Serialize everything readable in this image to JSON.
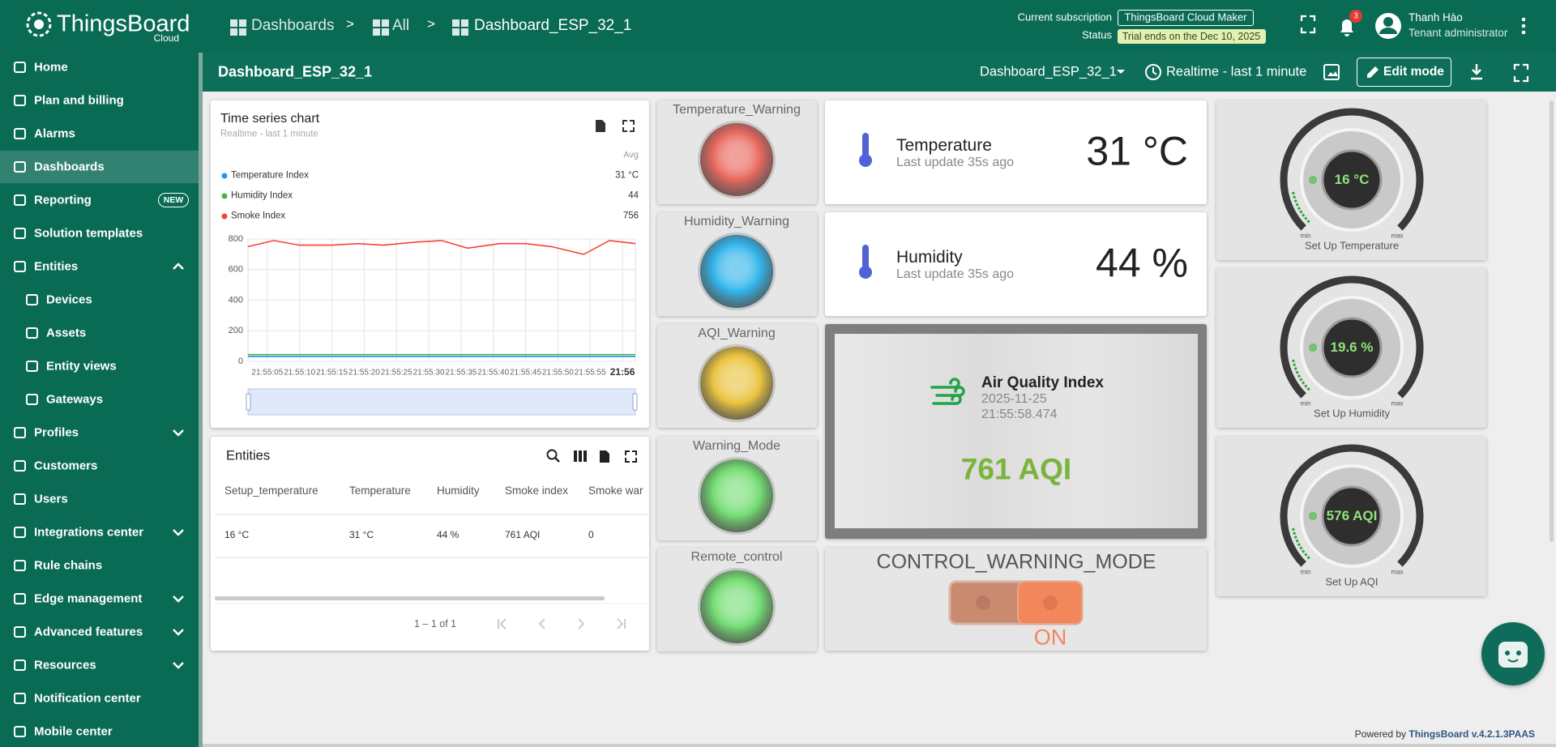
{
  "header": {
    "logo": "ThingsBoard",
    "logo_sub": "Cloud",
    "breadcrumbs": [
      "Dashboards",
      "All",
      "Dashboard_ESP_32_1"
    ],
    "separator": ">",
    "subscription_label": "Current subscription",
    "subscription": "ThingsBoard Cloud Maker",
    "status_label": "Status",
    "status": "Trial ends on the Dec 10, 2025",
    "notifications": "3",
    "user_name": "Thanh Hào",
    "user_role": "Tenant administrator"
  },
  "sidebar": {
    "items": [
      {
        "label": "Home"
      },
      {
        "label": "Plan and billing"
      },
      {
        "label": "Alarms"
      },
      {
        "label": "Dashboards",
        "active": true
      },
      {
        "label": "Reporting",
        "badge": "NEW"
      },
      {
        "label": "Solution templates"
      },
      {
        "label": "Entities",
        "expanded": true,
        "children": [
          {
            "label": "Devices"
          },
          {
            "label": "Assets"
          },
          {
            "label": "Entity views"
          },
          {
            "label": "Gateways"
          }
        ]
      },
      {
        "label": "Profiles",
        "expandable": true
      },
      {
        "label": "Customers"
      },
      {
        "label": "Users"
      },
      {
        "label": "Integrations center",
        "expandable": true
      },
      {
        "label": "Rule chains"
      },
      {
        "label": "Edge management",
        "expandable": true
      },
      {
        "label": "Advanced features",
        "expandable": true
      },
      {
        "label": "Resources",
        "expandable": true
      },
      {
        "label": "Notification center"
      },
      {
        "label": "Mobile center"
      }
    ]
  },
  "toolbar": {
    "title": "Dashboard_ESP_32_1",
    "dashboard_select": "Dashboard_ESP_32_1",
    "timewindow": "Realtime - last 1 minute",
    "edit_button": "Edit mode"
  },
  "time_series_chart": {
    "type": "line",
    "title": "Time series chart",
    "subtitle": "Realtime - last 1 minute",
    "legend_header": "Avg",
    "x": [
      "21:55:02",
      "21:55:06",
      "21:55:10",
      "21:55:15",
      "21:55:19",
      "21:55:23",
      "21:55:28",
      "21:55:32",
      "21:55:36",
      "21:55:41",
      "21:55:45",
      "21:55:49",
      "21:55:54",
      "21:55:58",
      "21:56:02"
    ],
    "series": [
      {
        "name": "Temperature Index",
        "color": "#2196f3",
        "avg": "31 °C",
        "values": [
          31,
          31,
          31,
          31,
          31,
          31,
          31,
          31,
          31,
          31,
          31,
          31,
          31,
          31,
          31
        ]
      },
      {
        "name": "Humidity Index",
        "color": "#4caf50",
        "avg": "44",
        "values": [
          44,
          44,
          44,
          44,
          44,
          44,
          44,
          44,
          44,
          44,
          44,
          44,
          44,
          44,
          44
        ]
      },
      {
        "name": "Smoke Index",
        "color": "#f44336",
        "avg": "756",
        "values": [
          750,
          790,
          760,
          760,
          770,
          760,
          780,
          790,
          740,
          770,
          770,
          750,
          700,
          790,
          770
        ]
      }
    ],
    "xlim": [
      "21:55:02",
      "21:56:02"
    ],
    "xticks": [
      "21:55:05",
      "21:55:10",
      "21:55:15",
      "21:55:20",
      "21:55:25",
      "21:55:30",
      "21:55:35",
      "21:55:40",
      "21:55:45",
      "21:55:50",
      "21:55:55",
      "21:56"
    ],
    "ylim": [
      0,
      800
    ],
    "yticks": [
      0,
      200,
      400,
      600,
      800
    ],
    "grid": true
  },
  "entities_table": {
    "title": "Entities",
    "columns": [
      "Setup_temperature",
      "Temperature",
      "Humidity",
      "Smoke index",
      "Smoke war"
    ],
    "rows": [
      [
        "16 °C",
        "31 °C",
        "44 %",
        "761 AQI",
        "0"
      ]
    ],
    "pagination": "1 – 1 of 1"
  },
  "leds": [
    {
      "label": "Temperature_Warning",
      "color": "#e8675c"
    },
    {
      "label": "Humidity_Warning",
      "color": "#30b4ea"
    },
    {
      "label": "AQI_Warning",
      "color": "#e9c23c"
    },
    {
      "label": "Warning_Mode",
      "color": "#72dc72"
    },
    {
      "label": "Remote_control",
      "color": "#72dc72"
    }
  ],
  "value_cards": [
    {
      "label": "Temperature",
      "subtitle": "Last update 35s ago",
      "value": "31 °C"
    },
    {
      "label": "Humidity",
      "subtitle": "Last update 35s ago",
      "value": "44 %"
    }
  ],
  "aqi_card": {
    "title": "Air Quality Index",
    "date": "2025-11-25",
    "time": "21:55:58.474",
    "value": "761 AQI"
  },
  "control": {
    "title": "CONTROL_WARNING_MODE",
    "state": "ON"
  },
  "gauges": [
    {
      "value": "16 °C",
      "title": "Set Up Temperature",
      "min": "min",
      "max": "max"
    },
    {
      "value": "19.6 %",
      "title": "Set Up Humidity",
      "min": "min",
      "max": "max"
    },
    {
      "value": "576 AQI",
      "title": "Set Up AQI",
      "min": "min",
      "max": "max"
    }
  ],
  "footer": {
    "text": "Powered by",
    "link": "ThingsBoard v.4.2.1.3PAAS"
  }
}
